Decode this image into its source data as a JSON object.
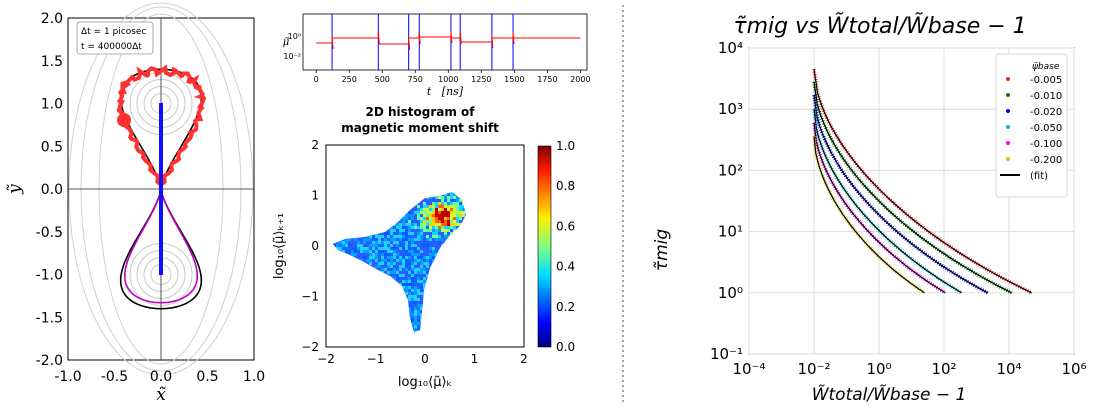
{
  "chart_data": [
    {
      "type": "line",
      "panel": "trajectory",
      "xlabel": "x̃",
      "ylabel": "ỹ",
      "xlim": [
        -1.0,
        1.0
      ],
      "ylim": [
        -2.0,
        2.0
      ],
      "xticks": [
        "-1.0",
        "-0.5",
        "0.0",
        "0.5",
        "1.0"
      ],
      "yticks": [
        "-2.0",
        "-1.5",
        "-1.0",
        "-0.5",
        "0.0",
        "0.5",
        "1.0",
        "1.5",
        "2.0"
      ],
      "annotation": [
        "Δt = 1 picosec",
        "t = 400000Δt"
      ],
      "colors": {
        "trajectory": "#ff3030",
        "separatrix": "#000000",
        "orbit": "#c000c0",
        "moment": "#1010ff",
        "contours": "#c0c0c0"
      }
    },
    {
      "type": "line",
      "panel": "time-series",
      "xlabel": "t   [ns]",
      "ylabel": "μ̃",
      "xlim": [
        -100,
        2050
      ],
      "yscale": "log",
      "xticks": [
        "0",
        "250",
        "500",
        "750",
        "1000",
        "1250",
        "1500",
        "1750",
        "2000"
      ],
      "yticks": [
        "10⁰",
        "10⁻²"
      ],
      "switch_times": [
        120,
        470,
        700,
        780,
        1020,
        1090,
        1330,
        1490
      ],
      "colors": {
        "signal": "#ff0000",
        "markers": "#0000ff"
      }
    },
    {
      "type": "heatmap",
      "panel": "histogram",
      "title": [
        "2D histogram of",
        "magnetic moment shift"
      ],
      "xlabel": "log₁₀⟨μ̃⟩ₖ",
      "ylabel": "log₁₀⟨μ̃⟩ₖ₊₁",
      "xlim": [
        -2,
        2
      ],
      "ylim": [
        -2,
        2
      ],
      "xticks": [
        "−2",
        "−1",
        "0",
        "1",
        "2"
      ],
      "yticks": [
        "−2",
        "−1",
        "0",
        "1",
        "2"
      ],
      "colorbar_ticks": [
        "0.0",
        "0.2",
        "0.4",
        "0.6",
        "0.8",
        "1.0"
      ],
      "colormap": "jet"
    },
    {
      "type": "line",
      "panel": "migration",
      "title": "τ̃mig vs W̃total/W̃base − 1",
      "xlabel": "W̃total/W̃base − 1",
      "ylabel": "τ̃mig",
      "xscale": "log",
      "yscale": "log",
      "xlim_exp": [
        -4,
        6
      ],
      "ylim_exp": [
        -1,
        4
      ],
      "xticks": [
        "10⁻⁴",
        "10⁻²",
        "10⁰",
        "10²",
        "10⁴",
        "10⁶"
      ],
      "yticks": [
        "10⁻¹",
        "10⁰",
        "10¹",
        "10²",
        "10³",
        "10⁴"
      ],
      "legend_title": "ψ̃base",
      "legend_position": "top-right",
      "series": [
        {
          "name": "-0.005",
          "color": "#ff2020",
          "y_start": 4500,
          "x_end": 50000
        },
        {
          "name": "-0.010",
          "color": "#008000",
          "y_start": 2800,
          "x_end": 12000
        },
        {
          "name": "-0.020",
          "color": "#0000ff",
          "y_start": 1700,
          "x_end": 2200
        },
        {
          "name": "-0.050",
          "color": "#00c0c0",
          "y_start": 1000,
          "x_end": 350
        },
        {
          "name": "-0.100",
          "color": "#ff00ff",
          "y_start": 600,
          "x_end": 110
        },
        {
          "name": "-0.200",
          "color": "#d0c000",
          "y_start": 360,
          "x_end": 25
        }
      ],
      "fit_label": "(fit)"
    }
  ]
}
